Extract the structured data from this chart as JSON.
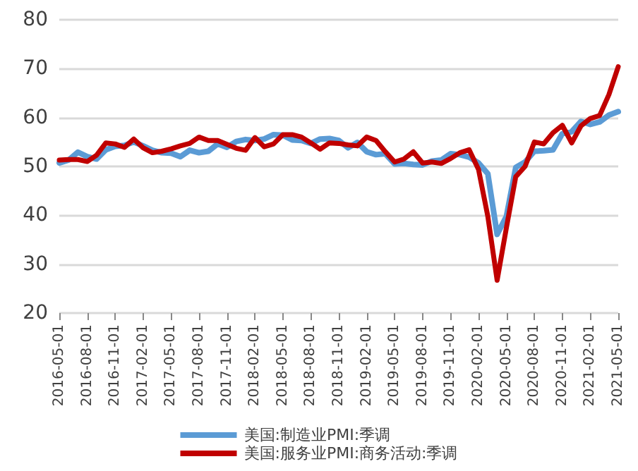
{
  "chart_data": {
    "type": "line",
    "categories": [
      "2016-05-01",
      null,
      null,
      "2016-08-01",
      null,
      null,
      "2016-11-01",
      null,
      null,
      "2017-02-01",
      null,
      null,
      "2017-05-01",
      null,
      null,
      "2017-08-01",
      null,
      null,
      "2017-11-01",
      null,
      null,
      "2018-02-01",
      null,
      null,
      "2018-05-01",
      null,
      null,
      "2018-08-01",
      null,
      null,
      "2018-11-01",
      null,
      null,
      "2019-02-01",
      null,
      null,
      "2019-05-01",
      null,
      null,
      "2019-08-01",
      null,
      null,
      "2019-11-01",
      null,
      null,
      "2020-02-01",
      null,
      null,
      "2020-05-01",
      null,
      null,
      "2020-08-01",
      null,
      null,
      "2020-11-01",
      null,
      null,
      "2021-02-01",
      null,
      null,
      "2021-05-01"
    ],
    "series": [
      {
        "name": "美国:制造业PMI:季调",
        "color": "#5b9bd5",
        "values": [
          50.7,
          51.3,
          52.9,
          52.0,
          51.5,
          53.4,
          54.1,
          54.3,
          55.0,
          54.2,
          53.3,
          52.8,
          52.7,
          52.0,
          53.3,
          52.8,
          53.1,
          54.6,
          53.9,
          55.1,
          55.5,
          55.3,
          55.6,
          56.5,
          56.4,
          55.4,
          55.3,
          54.7,
          55.6,
          55.7,
          55.3,
          53.8,
          54.9,
          53.0,
          52.4,
          52.6,
          50.5,
          50.6,
          50.4,
          50.3,
          51.1,
          51.3,
          52.6,
          52.4,
          51.9,
          50.7,
          48.5,
          36.1,
          39.8,
          49.8,
          50.9,
          53.1,
          53.2,
          53.4,
          56.7,
          57.1,
          59.2,
          58.6,
          59.1,
          60.5,
          61.2
        ]
      },
      {
        "name": "美国:服务业PMI:商务活动:季调",
        "color": "#c00000",
        "values": [
          51.3,
          51.4,
          51.4,
          51.0,
          52.3,
          54.8,
          54.6,
          53.9,
          55.6,
          53.8,
          52.8,
          53.1,
          53.6,
          54.2,
          54.7,
          56.0,
          55.3,
          55.3,
          54.5,
          53.7,
          53.3,
          55.9,
          54.0,
          54.6,
          56.5,
          56.5,
          56.0,
          54.8,
          53.5,
          54.8,
          54.7,
          54.4,
          54.2,
          56.0,
          55.3,
          53.0,
          50.9,
          51.5,
          53.0,
          50.7,
          50.9,
          50.6,
          51.6,
          52.8,
          53.4,
          49.4,
          39.8,
          26.7,
          37.5,
          47.9,
          50.0,
          55.0,
          54.6,
          56.9,
          58.4,
          54.8,
          58.3,
          59.8,
          60.4,
          64.7,
          70.4
        ]
      }
    ],
    "ylim": [
      20,
      80
    ],
    "yticks": [
      20,
      30,
      40,
      50,
      60,
      70,
      80
    ],
    "grid": "y",
    "legend": "bottom",
    "marker": "none",
    "line_style": "solid"
  }
}
